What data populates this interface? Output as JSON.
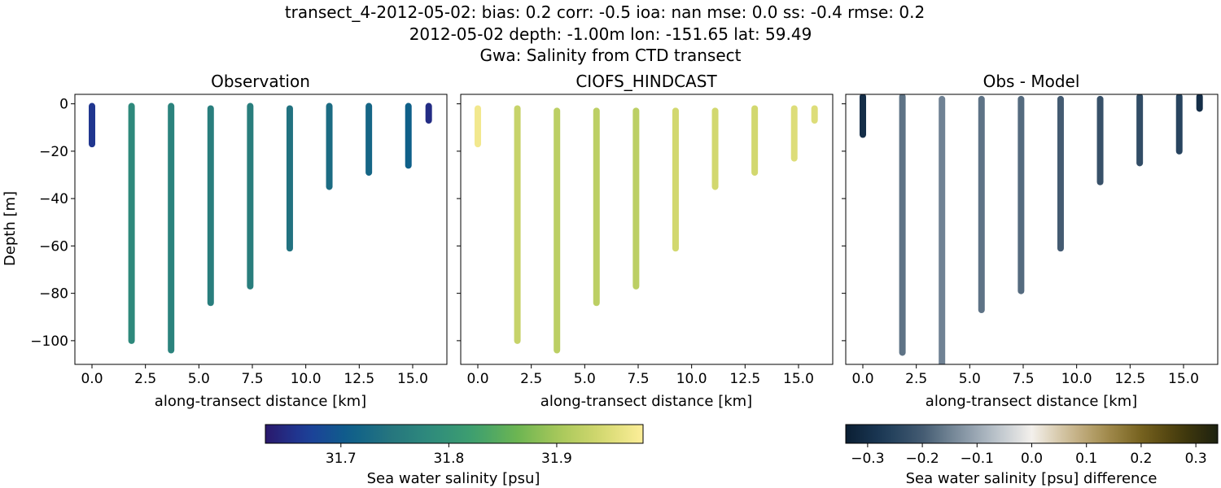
{
  "suptitle": {
    "line1": "transect_4-2012-05-02: bias: 0.2  corr: -0.5  ioa: nan  mse: 0.0  ss: -0.4  rmse: 0.2",
    "line2": "2012-05-02 depth: -1.00m lon: -151.65 lat: 59.49",
    "line3": "Gwa: Salinity from CTD transect"
  },
  "colors": {
    "haline": [
      "#2a186c",
      "#1d3f9a",
      "#0e5f8a",
      "#26767e",
      "#2f8c7c",
      "#3fa06e",
      "#6cb552",
      "#a8c85a",
      "#d3d870",
      "#fdee99"
    ],
    "diff": [
      "#0a1e33",
      "#1c3a57",
      "#40586f",
      "#7c8d9d",
      "#b8c1c9",
      "#f3f0ec",
      "#cdbb94",
      "#a38c4e",
      "#735f1c",
      "#453b0c",
      "#1d2210"
    ]
  },
  "chart_data": [
    {
      "type": "scatter",
      "title": "Observation",
      "xlabel": "along-transect distance [km]",
      "ylabel": "Depth [m]",
      "xlim": [
        -0.8,
        16.6
      ],
      "ylim": [
        -110,
        4
      ],
      "xticks": [
        0.0,
        2.5,
        5.0,
        7.5,
        10.0,
        12.5,
        15.0
      ],
      "xtick_labels": [
        "0.0",
        "2.5",
        "5.0",
        "7.5",
        "10.0",
        "12.5",
        "15.0"
      ],
      "yticks": [
        0,
        -20,
        -40,
        -60,
        -80,
        -100
      ],
      "ytick_labels": [
        "0",
        "−20",
        "−40",
        "−60",
        "−80",
        "−100"
      ],
      "colormap": "haline",
      "clim": [
        31.63,
        31.98
      ],
      "stations": [
        {
          "x": 0.0,
          "top": -1,
          "bottom": -17,
          "value": 31.66
        },
        {
          "x": 1.85,
          "top": -1,
          "bottom": -100,
          "value": 31.78
        },
        {
          "x": 3.7,
          "top": -1,
          "bottom": -104,
          "value": 31.77
        },
        {
          "x": 5.55,
          "top": -2,
          "bottom": -84,
          "value": 31.76
        },
        {
          "x": 7.4,
          "top": -1,
          "bottom": -77,
          "value": 31.76
        },
        {
          "x": 9.25,
          "top": -2,
          "bottom": -61,
          "value": 31.74
        },
        {
          "x": 11.1,
          "top": -1,
          "bottom": -35,
          "value": 31.73
        },
        {
          "x": 12.95,
          "top": -1,
          "bottom": -29,
          "value": 31.72
        },
        {
          "x": 14.8,
          "top": -1,
          "bottom": -26,
          "value": 31.71
        },
        {
          "x": 15.75,
          "top": -1,
          "bottom": -7,
          "value": 31.65
        }
      ]
    },
    {
      "type": "scatter",
      "title": "CIOFS_HINDCAST",
      "xlabel": "along-transect distance [km]",
      "xlim": [
        -0.8,
        16.6
      ],
      "ylim": [
        -110,
        4
      ],
      "xticks": [
        0.0,
        2.5,
        5.0,
        7.5,
        10.0,
        12.5,
        15.0
      ],
      "xtick_labels": [
        "0.0",
        "2.5",
        "5.0",
        "7.5",
        "10.0",
        "12.5",
        "15.0"
      ],
      "yticks": [
        0,
        -20,
        -40,
        -60,
        -80,
        -100
      ],
      "colormap": "haline",
      "clim": [
        31.63,
        31.98
      ],
      "stations": [
        {
          "x": 0.0,
          "top": -2,
          "bottom": -17,
          "value": 31.97
        },
        {
          "x": 1.85,
          "top": -2,
          "bottom": -100,
          "value": 31.93
        },
        {
          "x": 3.7,
          "top": -3,
          "bottom": -104,
          "value": 31.92
        },
        {
          "x": 5.55,
          "top": -3,
          "bottom": -84,
          "value": 31.92
        },
        {
          "x": 7.4,
          "top": -3,
          "bottom": -77,
          "value": 31.92
        },
        {
          "x": 9.25,
          "top": -3,
          "bottom": -61,
          "value": 31.94
        },
        {
          "x": 11.1,
          "top": -3,
          "bottom": -35,
          "value": 31.94
        },
        {
          "x": 12.95,
          "top": -2,
          "bottom": -29,
          "value": 31.94
        },
        {
          "x": 14.8,
          "top": -2,
          "bottom": -23,
          "value": 31.95
        },
        {
          "x": 15.75,
          "top": -2,
          "bottom": -7,
          "value": 31.95
        }
      ]
    },
    {
      "type": "scatter",
      "title": "Obs - Model",
      "xlabel": "along-transect distance [km]",
      "xlim": [
        -0.8,
        16.6
      ],
      "ylim": [
        -110,
        4
      ],
      "xticks": [
        0.0,
        2.5,
        5.0,
        7.5,
        10.0,
        12.5,
        15.0
      ],
      "xtick_labels": [
        "0.0",
        "2.5",
        "5.0",
        "7.5",
        "10.0",
        "12.5",
        "15.0"
      ],
      "yticks": [
        0,
        -20,
        -40,
        -60,
        -80,
        -100
      ],
      "colormap": "diff",
      "clim": [
        -0.34,
        0.34
      ],
      "stations": [
        {
          "x": 0.0,
          "top": 3,
          "bottom": -13,
          "value": -0.3
        },
        {
          "x": 1.85,
          "top": 3,
          "bottom": -105,
          "value": -0.17
        },
        {
          "x": 3.7,
          "top": 2,
          "bottom": -110,
          "value": -0.15
        },
        {
          "x": 5.55,
          "top": 2,
          "bottom": -87,
          "value": -0.17
        },
        {
          "x": 7.4,
          "top": 2,
          "bottom": -79,
          "value": -0.18
        },
        {
          "x": 9.25,
          "top": 2,
          "bottom": -61,
          "value": -0.2
        },
        {
          "x": 11.1,
          "top": 2,
          "bottom": -33,
          "value": -0.22
        },
        {
          "x": 12.95,
          "top": 3,
          "bottom": -25,
          "value": -0.23
        },
        {
          "x": 14.8,
          "top": 3,
          "bottom": -20,
          "value": -0.25
        },
        {
          "x": 15.75,
          "top": 3,
          "bottom": -2,
          "value": -0.3
        }
      ]
    }
  ],
  "colorbars": [
    {
      "colormap": "haline",
      "clim": [
        31.63,
        31.98
      ],
      "ticks": [
        31.7,
        31.8,
        31.9
      ],
      "tick_labels": [
        "31.7",
        "31.8",
        "31.9"
      ],
      "label": "Sea water salinity [psu]"
    },
    {
      "colormap": "diff",
      "clim": [
        -0.34,
        0.34
      ],
      "ticks": [
        -0.3,
        -0.2,
        -0.1,
        0.0,
        0.1,
        0.2,
        0.3
      ],
      "tick_labels": [
        "−0.3",
        "−0.2",
        "−0.1",
        "0.0",
        "0.1",
        "0.2",
        "0.3"
      ],
      "label": "Sea water salinity [psu] difference"
    }
  ]
}
